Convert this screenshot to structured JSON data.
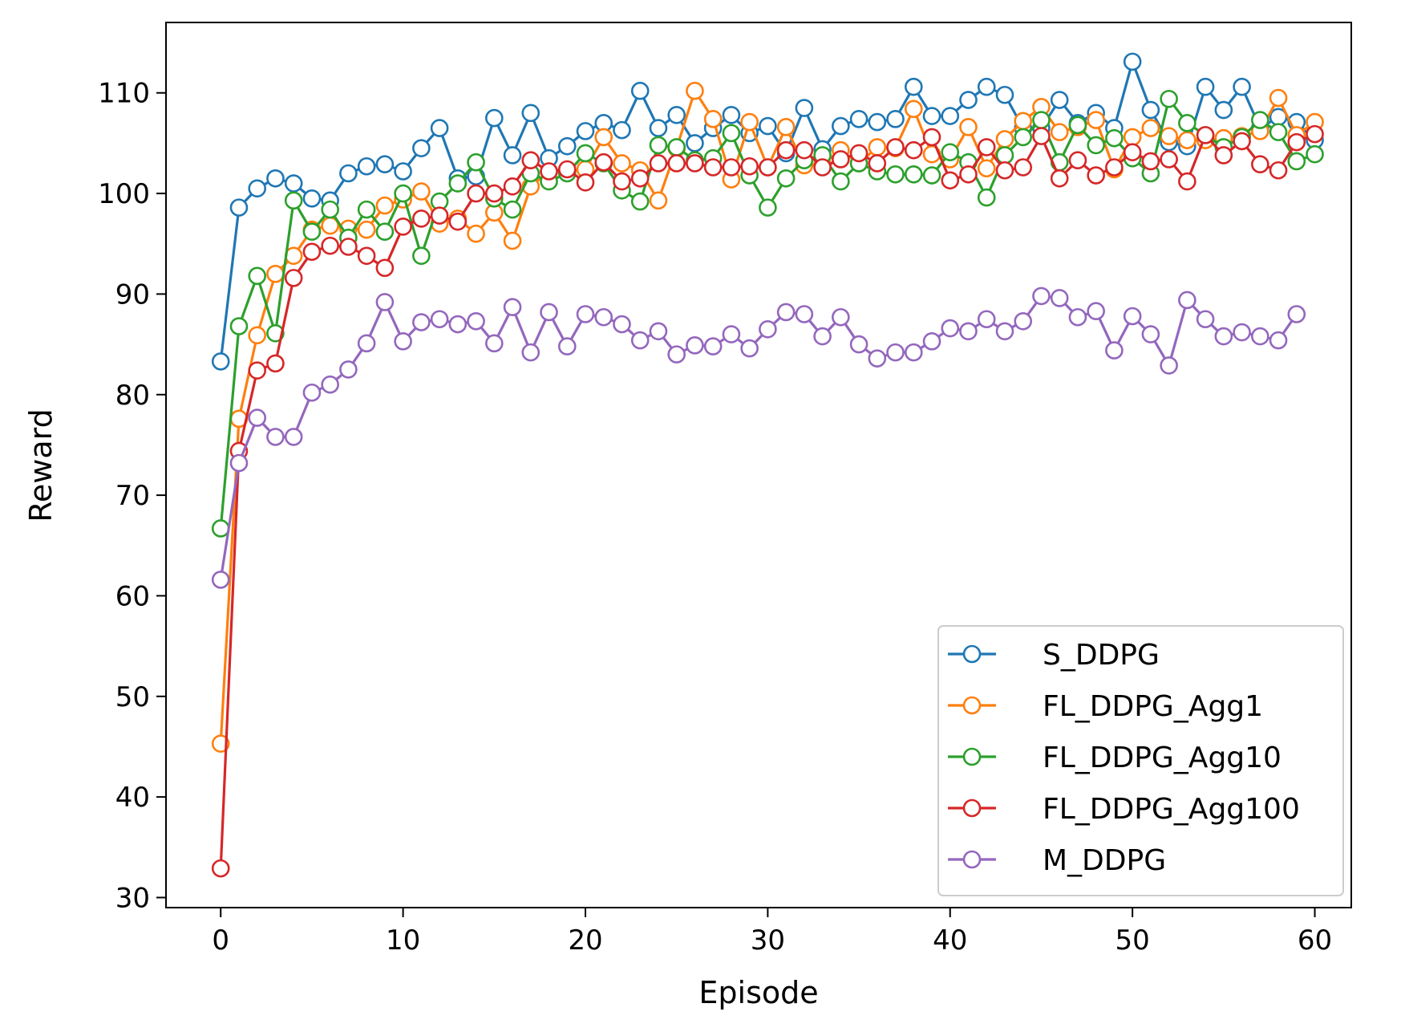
{
  "chart_data": {
    "type": "line",
    "title": "",
    "xlabel": "Episode",
    "ylabel": "Reward",
    "xlim": [
      -3,
      62
    ],
    "ylim": [
      29,
      117
    ],
    "xticks": [
      0,
      10,
      20,
      30,
      40,
      50,
      60
    ],
    "yticks": [
      30,
      40,
      50,
      60,
      70,
      80,
      90,
      100,
      110
    ],
    "legend_position": "lower-right",
    "marker": "open-circle",
    "series": [
      {
        "name": "S_DDPG",
        "color": "#1f77b4",
        "x": [
          0,
          1,
          2,
          3,
          4,
          5,
          6,
          7,
          8,
          9,
          10,
          11,
          12,
          13,
          14,
          15,
          16,
          17,
          18,
          19,
          20,
          21,
          22,
          23,
          24,
          25,
          26,
          27,
          28,
          29,
          30,
          31,
          32,
          33,
          34,
          35,
          36,
          37,
          38,
          39,
          40,
          41,
          42,
          43,
          44,
          45,
          46,
          47,
          48,
          49,
          50,
          51,
          52,
          53,
          54,
          55,
          56,
          57,
          58,
          59,
          60
        ],
        "values": [
          83.3,
          98.6,
          100.5,
          101.5,
          101,
          99.5,
          99.3,
          102,
          102.7,
          102.9,
          102.2,
          104.5,
          106.5,
          101.5,
          101.7,
          107.5,
          103.8,
          108,
          103.5,
          104.7,
          106.2,
          107,
          106.3,
          110.2,
          106.5,
          107.8,
          105,
          106.5,
          107.8,
          106,
          106.7,
          104,
          108.5,
          104.4,
          106.7,
          107.4,
          107.1,
          107.4,
          110.6,
          107.7,
          107.7,
          109.3,
          110.6,
          109.8,
          106.5,
          106.5,
          109.3,
          107,
          108,
          106.5,
          113.1,
          108.3,
          105.1,
          104.7,
          110.6,
          108.3,
          110.6,
          106.5,
          107.6,
          107.1,
          105.3
        ]
      },
      {
        "name": "FL_DDPG_Agg1",
        "color": "#ff7f0e",
        "x": [
          0,
          1,
          2,
          3,
          4,
          5,
          6,
          7,
          8,
          9,
          10,
          11,
          12,
          13,
          14,
          15,
          16,
          17,
          18,
          19,
          20,
          21,
          22,
          23,
          24,
          25,
          26,
          27,
          28,
          29,
          30,
          31,
          32,
          33,
          34,
          35,
          36,
          37,
          38,
          39,
          40,
          41,
          42,
          43,
          44,
          45,
          46,
          47,
          48,
          49,
          50,
          51,
          52,
          53,
          54,
          55,
          56,
          57,
          58,
          59,
          60
        ],
        "values": [
          45.3,
          77.6,
          85.9,
          92,
          93.8,
          96.4,
          96.8,
          96.5,
          96.4,
          98.8,
          99.4,
          100.2,
          97,
          97.5,
          96,
          98.1,
          95.3,
          100.7,
          102.2,
          102.2,
          102.4,
          105.6,
          103,
          102.3,
          99.3,
          104.5,
          110.2,
          107.4,
          101.4,
          107.1,
          102.6,
          106.6,
          102.8,
          102.9,
          104.3,
          103,
          104.6,
          104.5,
          108.4,
          103.9,
          103.4,
          106.6,
          102.5,
          105.4,
          107.2,
          108.6,
          106.1,
          106.6,
          107.3,
          102.4,
          105.6,
          106.5,
          105.7,
          105.3,
          105.3,
          105.5,
          105.7,
          106.2,
          109.5,
          105.8,
          107.1
        ]
      },
      {
        "name": "FL_DDPG_Agg10",
        "color": "#2ca02c",
        "x": [
          0,
          1,
          2,
          3,
          4,
          5,
          6,
          7,
          8,
          9,
          10,
          11,
          12,
          13,
          14,
          15,
          16,
          17,
          18,
          19,
          20,
          21,
          22,
          23,
          24,
          25,
          26,
          27,
          28,
          29,
          30,
          31,
          32,
          33,
          34,
          35,
          36,
          37,
          38,
          39,
          40,
          41,
          42,
          43,
          44,
          45,
          46,
          47,
          48,
          49,
          50,
          51,
          52,
          53,
          54,
          55,
          56,
          57,
          58,
          59,
          60
        ],
        "values": [
          66.7,
          86.8,
          91.8,
          86.1,
          99.3,
          96.2,
          98.4,
          95.6,
          98.4,
          96.2,
          100,
          93.8,
          99.2,
          101,
          103.1,
          99.5,
          98.4,
          102,
          101.2,
          102,
          104,
          103,
          100.3,
          99.2,
          104.8,
          104.6,
          103.3,
          103.5,
          106,
          101.8,
          98.6,
          101.5,
          103.3,
          103.8,
          101.2,
          103,
          102.2,
          101.9,
          101.9,
          101.8,
          104.1,
          103.1,
          99.6,
          103.8,
          105.6,
          107.3,
          103.1,
          106.8,
          104.8,
          105.5,
          103.5,
          102,
          109.4,
          107,
          105.8,
          104.6,
          105.6,
          107.3,
          106.1,
          103.2,
          103.9
        ]
      },
      {
        "name": "FL_DDPG_Agg100",
        "color": "#d62728",
        "x": [
          0,
          1,
          2,
          3,
          4,
          5,
          6,
          7,
          8,
          9,
          10,
          11,
          12,
          13,
          14,
          15,
          16,
          17,
          18,
          19,
          20,
          21,
          22,
          23,
          24,
          25,
          26,
          27,
          28,
          29,
          30,
          31,
          32,
          33,
          34,
          35,
          36,
          37,
          38,
          39,
          40,
          41,
          42,
          43,
          44,
          45,
          46,
          47,
          48,
          49,
          50,
          51,
          52,
          53,
          54,
          55,
          56,
          57,
          58,
          59,
          60
        ],
        "values": [
          32.9,
          74.4,
          82.4,
          83.1,
          91.6,
          94.2,
          94.8,
          94.7,
          93.8,
          92.6,
          96.7,
          97.5,
          97.8,
          97.2,
          100,
          100,
          100.7,
          103.3,
          102.2,
          102.4,
          101.1,
          103.1,
          101.2,
          101.5,
          103,
          103,
          103,
          102.6,
          102.6,
          102.7,
          102.6,
          104.3,
          104.3,
          102.6,
          103.4,
          104,
          103,
          104.6,
          104.3,
          105.6,
          101.3,
          101.9,
          104.6,
          102.3,
          102.6,
          105.7,
          101.5,
          103.3,
          101.8,
          102.6,
          104.1,
          103.2,
          103.4,
          101.2,
          105.8,
          103.8,
          105.2,
          102.9,
          102.3,
          105.1,
          105.9
        ]
      },
      {
        "name": "M_DDPG",
        "color": "#9467bd",
        "x": [
          0,
          1,
          2,
          3,
          4,
          5,
          6,
          7,
          8,
          9,
          10,
          11,
          12,
          13,
          14,
          15,
          16,
          17,
          18,
          19,
          20,
          21,
          22,
          23,
          24,
          25,
          26,
          27,
          28,
          29,
          30,
          31,
          32,
          33,
          34,
          35,
          36,
          37,
          38,
          39,
          40,
          41,
          42,
          43,
          44,
          45,
          46,
          47,
          48,
          49,
          50,
          51,
          52,
          53,
          54,
          55,
          56,
          57,
          58,
          59
        ],
        "values": [
          61.6,
          73.2,
          77.7,
          75.8,
          75.8,
          80.2,
          81,
          82.5,
          85.1,
          89.2,
          85.3,
          87.2,
          87.5,
          87,
          87.3,
          85.1,
          88.7,
          84.2,
          88.2,
          84.8,
          88,
          87.7,
          87,
          85.4,
          86.3,
          84,
          84.9,
          84.8,
          86,
          84.6,
          86.5,
          88.2,
          88,
          85.8,
          87.7,
          85,
          83.6,
          84.2,
          84.2,
          85.3,
          86.6,
          86.3,
          87.5,
          86.3,
          87.3,
          89.8,
          89.6,
          87.7,
          88.3,
          84.4,
          87.8,
          86,
          82.9,
          89.4,
          87.5,
          85.8,
          86.2,
          85.8,
          85.4,
          88
        ]
      }
    ]
  }
}
